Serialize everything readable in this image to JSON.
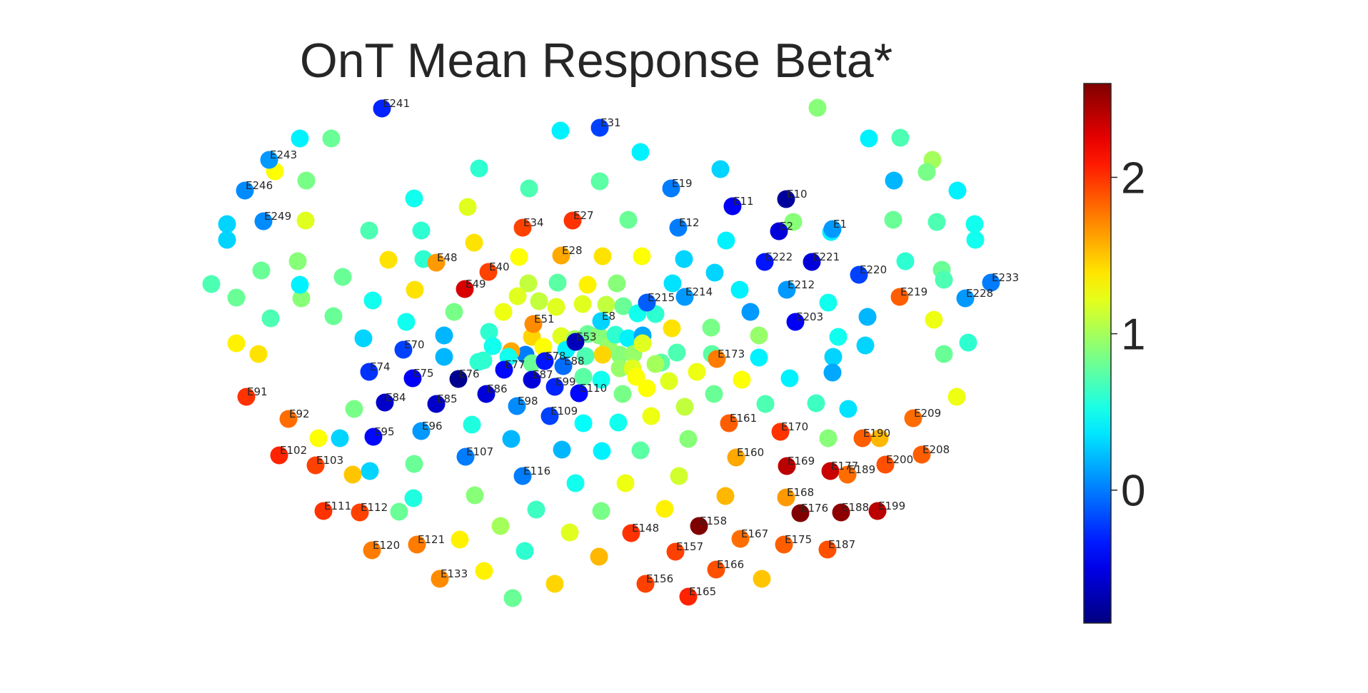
{
  "chart_data": {
    "type": "scatter",
    "title": "OnT Mean Response Beta*",
    "xlabel": "",
    "ylabel": "",
    "grid": false,
    "colorbar": {
      "colormap": "jet",
      "range": [
        -0.85,
        2.6
      ],
      "ticks": [
        "0",
        "1",
        "2"
      ]
    },
    "labeled_electrodes": [
      {
        "label": "E241",
        "value": -0.3
      },
      {
        "label": "E31",
        "value": -0.2
      },
      {
        "label": "E243",
        "value": 0.1
      },
      {
        "label": "E246",
        "value": 0.05
      },
      {
        "label": "E249",
        "value": 0.05
      },
      {
        "label": "E19",
        "value": 0.0
      },
      {
        "label": "E11",
        "value": -0.45
      },
      {
        "label": "E10",
        "value": -0.75
      },
      {
        "label": "E27",
        "value": 2.0
      },
      {
        "label": "E34",
        "value": 1.95
      },
      {
        "label": "E12",
        "value": 0.0
      },
      {
        "label": "E2",
        "value": -0.55
      },
      {
        "label": "E1",
        "value": 0.1
      },
      {
        "label": "E28",
        "value": 1.6
      },
      {
        "label": "E48",
        "value": 1.65
      },
      {
        "label": "E40",
        "value": 1.95
      },
      {
        "label": "E222",
        "value": -0.35
      },
      {
        "label": "E221",
        "value": -0.55
      },
      {
        "label": "E220",
        "value": -0.2
      },
      {
        "label": "E233",
        "value": 0.0
      },
      {
        "label": "E49",
        "value": 2.3
      },
      {
        "label": "E212",
        "value": 0.1
      },
      {
        "label": "E219",
        "value": 1.85
      },
      {
        "label": "E228",
        "value": 0.1
      },
      {
        "label": "E214",
        "value": 0.1
      },
      {
        "label": "E215",
        "value": -0.1
      },
      {
        "label": "E8",
        "value": 0.3
      },
      {
        "label": "E51",
        "value": 1.7
      },
      {
        "label": "E203",
        "value": -0.45
      },
      {
        "label": "E53",
        "value": -0.65
      },
      {
        "label": "E70",
        "value": -0.2
      },
      {
        "label": "E78",
        "value": -0.35
      },
      {
        "label": "E88",
        "value": -0.05
      },
      {
        "label": "E173",
        "value": 1.75
      },
      {
        "label": "E74",
        "value": -0.25
      },
      {
        "label": "E77",
        "value": -0.4
      },
      {
        "label": "E75",
        "value": -0.45
      },
      {
        "label": "E76",
        "value": -0.8
      },
      {
        "label": "E87",
        "value": -0.55
      },
      {
        "label": "E99",
        "value": -0.3
      },
      {
        "label": "E91",
        "value": 2.0
      },
      {
        "label": "E86",
        "value": -0.55
      },
      {
        "label": "E110",
        "value": -0.4
      },
      {
        "label": "E84",
        "value": -0.6
      },
      {
        "label": "E85",
        "value": -0.6
      },
      {
        "label": "E98",
        "value": 0.05
      },
      {
        "label": "E92",
        "value": 1.8
      },
      {
        "label": "E109",
        "value": -0.2
      },
      {
        "label": "E161",
        "value": 1.85
      },
      {
        "label": "E209",
        "value": 1.8
      },
      {
        "label": "E96",
        "value": 0.1
      },
      {
        "label": "E170",
        "value": 2.0
      },
      {
        "label": "E95",
        "value": -0.4
      },
      {
        "label": "E190",
        "value": 1.85
      },
      {
        "label": "E102",
        "value": 2.05
      },
      {
        "label": "E107",
        "value": 0.0
      },
      {
        "label": "E160",
        "value": 1.6
      },
      {
        "label": "E208",
        "value": 1.85
      },
      {
        "label": "E103",
        "value": 1.95
      },
      {
        "label": "E169",
        "value": 2.4
      },
      {
        "label": "E177",
        "value": 2.35
      },
      {
        "label": "E200",
        "value": 1.9
      },
      {
        "label": "E189",
        "value": 1.8
      },
      {
        "label": "E116",
        "value": 0.0
      },
      {
        "label": "E168",
        "value": 1.65
      },
      {
        "label": "E111",
        "value": 2.0
      },
      {
        "label": "E112",
        "value": 1.95
      },
      {
        "label": "E176",
        "value": 2.6
      },
      {
        "label": "E188",
        "value": 2.55
      },
      {
        "label": "E199",
        "value": 2.4
      },
      {
        "label": "E158",
        "value": 2.6
      },
      {
        "label": "E148",
        "value": 2.0
      },
      {
        "label": "E167",
        "value": 1.8
      },
      {
        "label": "E175",
        "value": 1.85
      },
      {
        "label": "E187",
        "value": 1.9
      },
      {
        "label": "E120",
        "value": 1.75
      },
      {
        "label": "E121",
        "value": 1.75
      },
      {
        "label": "E157",
        "value": 1.95
      },
      {
        "label": "E166",
        "value": 1.9
      },
      {
        "label": "E156",
        "value": 1.95
      },
      {
        "label": "E133",
        "value": 1.7
      },
      {
        "label": "E165",
        "value": 2.05
      }
    ]
  }
}
